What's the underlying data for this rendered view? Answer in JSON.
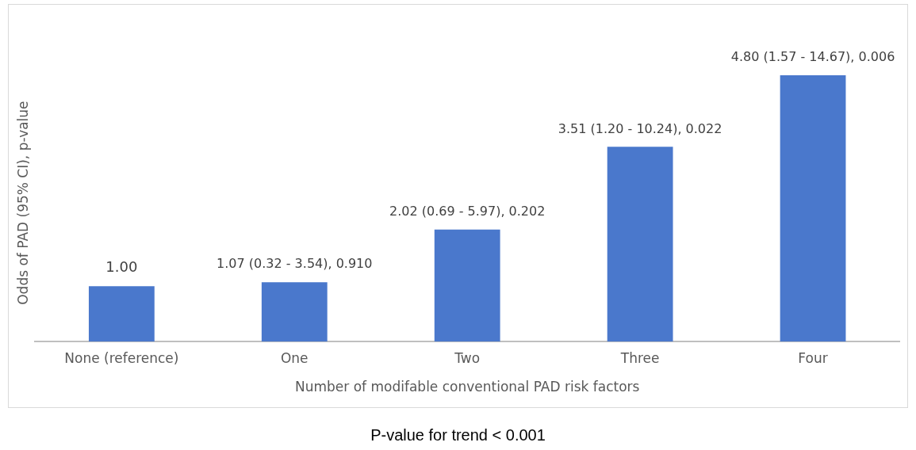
{
  "chart_data": {
    "type": "bar",
    "xlabel": "Number of modifable conventional PAD risk factors",
    "ylabel": "Odds of PAD (95% CI), p-value",
    "categories": [
      "None (reference)",
      "One",
      "Two",
      "Three",
      "Four"
    ],
    "values": [
      1.0,
      1.07,
      2.02,
      3.51,
      4.8
    ],
    "value_labels": [
      "1.00",
      "1.07 (0.32 - 3.54), 0.910",
      "2.02 (0.69 - 5.97), 0.202",
      "3.51 (1.20 - 10.24), 0.022",
      "4.80 (1.57 - 14.67), 0.006"
    ],
    "color": "#4a78cc",
    "tick_labels": "x",
    "grid": false,
    "legend": false,
    "annotations": [
      "P-value for trend < 0.001"
    ]
  }
}
